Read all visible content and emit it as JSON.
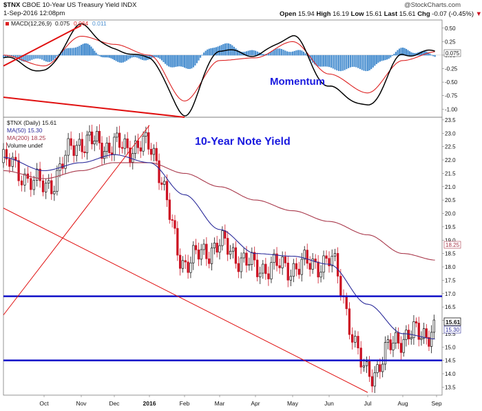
{
  "header": {
    "symbol": "$TNX",
    "title": "CBOE 10-Year US Treasury Yield INDX",
    "date": "1-Sep-2016 12:08pm",
    "copyright": "@StockCharts.com",
    "quote": {
      "open_label": "Open",
      "open": "15.94",
      "high_label": "High",
      "high": "16.19",
      "low_label": "Low",
      "low": "15.61",
      "last_label": "Last",
      "last": "15.61",
      "chg_label": "Chg",
      "chg": "-0.07 (-0.45%)"
    }
  },
  "macd_panel": {
    "legend_name": "MACD(12,26,9)",
    "legend_v1": "0.075",
    "legend_v2": "0.064",
    "legend_v3": "0.011",
    "annotation": "Momentum",
    "current_label": "0.075"
  },
  "price_panel": {
    "legend": [
      "$TNX (Daily) 15.61",
      "MA(50) 15.30",
      "MA(200) 18.25",
      "Volume undef"
    ],
    "annotation": "10-Year Note Yield",
    "last_label": "15.61",
    "ma50_label": "15.30",
    "ma200_label": "18.25"
  },
  "colors": {
    "price_up": "#111111",
    "price_down": "#cc1122",
    "ma50": "#2a2a9a",
    "ma200": "#a8374a",
    "macd_line": "#000000",
    "signal_line": "#dd2222",
    "histogram": "#4a8fd0",
    "trendline": "#e01010",
    "support": "#1010c8",
    "annotation": "#1a1adf"
  },
  "chart_data": [
    {
      "type": "line",
      "title": "MACD(12,26,9)",
      "x": [
        "Sep",
        "Oct",
        "Nov",
        "Dec",
        "2016",
        "Feb",
        "Mar",
        "Apr",
        "May",
        "Jun",
        "Jul",
        "Aug",
        "Sep"
      ],
      "ylim": [
        -1.15,
        0.65
      ],
      "yticks": [
        0.5,
        0.25,
        0.0,
        -0.25,
        -0.5,
        -0.75,
        -1.0
      ],
      "series": [
        {
          "name": "MACD",
          "values": [
            -0.05,
            -0.3,
            0.55,
            0.1,
            -0.05,
            -1.1,
            0.1,
            0.0,
            0.35,
            -0.6,
            -0.95,
            0.0,
            0.075
          ]
        },
        {
          "name": "Signal",
          "values": [
            0.0,
            -0.2,
            0.35,
            0.2,
            0.0,
            -0.85,
            -0.1,
            -0.05,
            0.25,
            -0.35,
            -0.7,
            -0.1,
            0.064
          ]
        },
        {
          "name": "Histogram",
          "values": [
            -0.05,
            -0.1,
            0.2,
            -0.1,
            -0.05,
            -0.25,
            0.2,
            0.05,
            0.1,
            -0.25,
            -0.25,
            0.1,
            0.011
          ]
        }
      ],
      "annotations": [
        "Momentum"
      ],
      "trendlines": [
        {
          "from": [
            "Nov",
            0.55
          ],
          "to": [
            "Sep",
            -0.2
          ]
        },
        {
          "from": [
            "Feb",
            -1.15
          ],
          "to": [
            "Sep",
            -0.78
          ]
        }
      ]
    },
    {
      "type": "line",
      "title": "$TNX (Daily) 15.61",
      "x": [
        "Sep",
        "Oct",
        "Nov",
        "Dec",
        "2016",
        "Feb",
        "Mar",
        "Apr",
        "May",
        "Jun",
        "Jul",
        "Aug",
        "Sep"
      ],
      "ylim": [
        13.2,
        23.6
      ],
      "yticks": [
        23.5,
        23.0,
        22.5,
        22.0,
        21.5,
        21.0,
        20.5,
        20.0,
        19.5,
        19.0,
        18.5,
        18.0,
        17.5,
        17.0,
        16.5,
        16.0,
        15.5,
        15.0,
        14.5,
        14.0,
        13.5
      ],
      "series": [
        {
          "name": "$TNX",
          "values": [
            21.9,
            21.0,
            22.7,
            22.5,
            22.5,
            18.2,
            18.8,
            18.0,
            18.0,
            18.2,
            14.0,
            15.4,
            15.61
          ]
        },
        {
          "name": "MA(50)",
          "values": [
            22.1,
            21.6,
            21.9,
            22.2,
            21.9,
            20.7,
            19.4,
            18.5,
            18.4,
            18.1,
            16.6,
            15.5,
            15.3
          ]
        },
        {
          "name": "MA(200)",
          "values": [
            21.6,
            21.3,
            21.6,
            21.9,
            21.9,
            21.5,
            21.0,
            20.5,
            20.1,
            19.7,
            19.2,
            18.5,
            18.25
          ]
        }
      ],
      "annotations": [
        "10-Year Note Yield"
      ],
      "horizontal_lines": [
        16.9,
        14.5
      ],
      "trendlines": [
        {
          "from": [
            "2016",
            23.3
          ],
          "to": [
            "Sep",
            16.2
          ]
        },
        {
          "from": [
            "Sep",
            20.2
          ],
          "to": [
            "Jul",
            13.3
          ]
        }
      ],
      "grid": false,
      "legend": "top-left"
    }
  ]
}
